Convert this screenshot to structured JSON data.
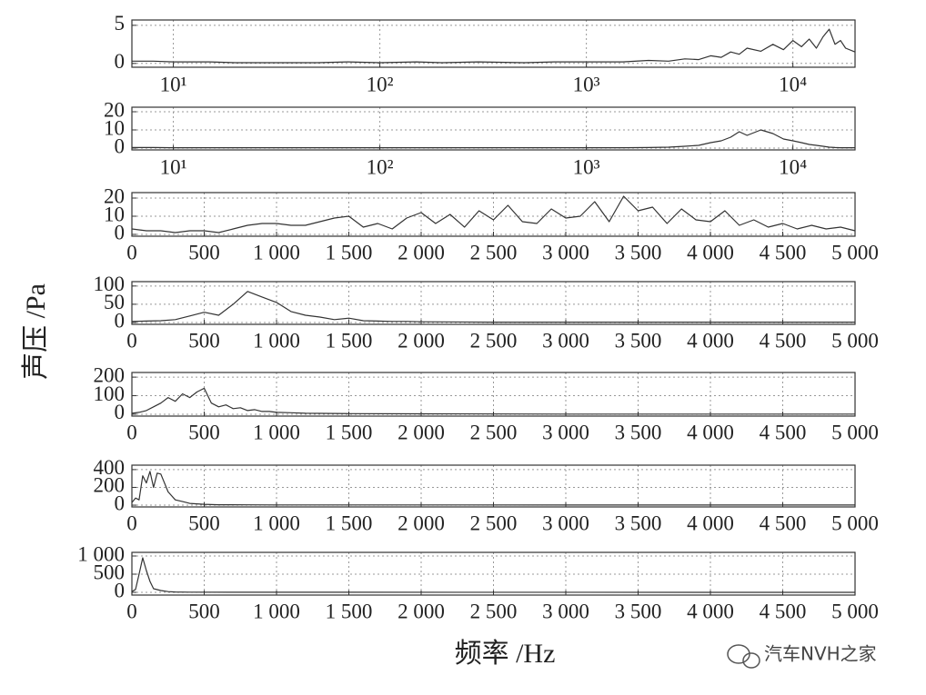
{
  "figure": {
    "ylabel": "声压 /Pa",
    "xlabel": "频率 /Hz",
    "watermark": "汽车NVH之家"
  },
  "chart_data": [
    {
      "type": "line",
      "xscale": "log",
      "grid": true,
      "color": "#333333",
      "x": [
        6.3,
        8,
        10,
        15,
        20,
        30,
        50,
        70,
        100,
        150,
        200,
        300,
        500,
        700,
        1000,
        1500,
        2000,
        2500,
        3000,
        3500,
        4000,
        4500,
        5000,
        5500,
        6000,
        7000,
        8000,
        9000,
        10000,
        11000,
        12000,
        13000,
        14000,
        15000,
        16000,
        17000,
        18000,
        20000
      ],
      "values": [
        0.3,
        0.3,
        0.2,
        0.2,
        0.1,
        0.1,
        0.1,
        0.2,
        0.1,
        0.2,
        0.1,
        0.2,
        0.1,
        0.2,
        0.2,
        0.2,
        0.4,
        0.3,
        0.6,
        0.5,
        1.0,
        0.8,
        1.5,
        1.2,
        2.0,
        1.6,
        2.5,
        1.8,
        3.0,
        2.2,
        3.2,
        2.0,
        3.5,
        4.5,
        2.5,
        3.0,
        2.0,
        1.5
      ],
      "xlim": [
        6.3,
        20000
      ],
      "xticks": [
        {
          "value": 10,
          "label": "10¹"
        },
        {
          "value": 100,
          "label": "10²"
        },
        {
          "value": 1000,
          "label": "10³"
        },
        {
          "value": 10000,
          "label": "10⁴"
        }
      ],
      "ylim": [
        -0.5,
        5.7
      ],
      "yticks": [
        0,
        5
      ]
    },
    {
      "type": "line",
      "xscale": "log",
      "grid": true,
      "color": "#333333",
      "x": [
        6.3,
        8,
        10,
        15,
        20,
        30,
        50,
        70,
        100,
        150,
        200,
        300,
        500,
        700,
        1000,
        1500,
        2000,
        2500,
        3000,
        3500,
        4000,
        4500,
        5000,
        5500,
        6000,
        7000,
        8000,
        9000,
        10000,
        11000,
        12000,
        13000,
        14000,
        15000,
        16000,
        17000,
        18000,
        20000
      ],
      "values": [
        0.3,
        0.3,
        0.2,
        0.2,
        0.2,
        0.2,
        0.2,
        0.2,
        0.2,
        0.2,
        0.2,
        0.2,
        0.2,
        0.2,
        0.2,
        0.2,
        0.3,
        0.5,
        1,
        1.5,
        3,
        4,
        6,
        9,
        7,
        10,
        8,
        5,
        4,
        3,
        2,
        1.5,
        1,
        0.5,
        0.3,
        0.2,
        0.2,
        0.2
      ],
      "xlim": [
        6.3,
        20000
      ],
      "xticks": [
        {
          "value": 10,
          "label": "10¹"
        },
        {
          "value": 100,
          "label": "10²"
        },
        {
          "value": 1000,
          "label": "10³"
        },
        {
          "value": 10000,
          "label": "10⁴"
        }
      ],
      "ylim": [
        -1,
        22.5
      ],
      "yticks": [
        0,
        10,
        20
      ]
    },
    {
      "type": "line",
      "grid": true,
      "color": "#333333",
      "x": [
        0,
        100,
        200,
        300,
        400,
        500,
        600,
        700,
        800,
        900,
        1000,
        1100,
        1200,
        1300,
        1400,
        1500,
        1600,
        1700,
        1800,
        1900,
        2000,
        2100,
        2200,
        2300,
        2400,
        2500,
        2600,
        2700,
        2800,
        2900,
        3000,
        3100,
        3200,
        3300,
        3400,
        3500,
        3600,
        3700,
        3800,
        3900,
        4000,
        4100,
        4200,
        4300,
        4400,
        4500,
        4600,
        4700,
        4800,
        4900,
        5000
      ],
      "values": [
        3,
        2,
        2,
        1,
        2,
        2,
        1,
        3,
        5,
        6,
        6,
        5,
        5,
        7,
        9,
        10,
        4,
        6,
        3,
        9,
        12,
        6,
        11,
        4,
        13,
        8,
        16,
        7,
        6,
        14,
        9,
        10,
        18,
        7,
        21,
        13,
        15,
        6,
        14,
        8,
        7,
        13,
        5,
        8,
        4,
        6,
        3,
        5,
        3,
        4,
        2
      ],
      "xlim": [
        0,
        5000
      ],
      "xticks": [
        0,
        500,
        {
          "value": 1000,
          "label": "1 000"
        },
        {
          "value": 1500,
          "label": "1 500"
        },
        {
          "value": 2000,
          "label": "2 000"
        },
        {
          "value": 2500,
          "label": "2 500"
        },
        {
          "value": 3000,
          "label": "3 000"
        },
        {
          "value": 3500,
          "label": "3 500"
        },
        {
          "value": 4000,
          "label": "4 000"
        },
        {
          "value": 4500,
          "label": "4 500"
        },
        {
          "value": 5000,
          "label": "5 000"
        }
      ],
      "ylim": [
        -1,
        23
      ],
      "yticks": [
        0,
        10,
        20
      ]
    },
    {
      "type": "line",
      "grid": true,
      "color": "#333333",
      "x": [
        0,
        100,
        200,
        300,
        400,
        500,
        600,
        700,
        800,
        900,
        1000,
        1100,
        1200,
        1300,
        1400,
        1500,
        1600,
        1700,
        1800,
        1900,
        2000,
        2500,
        3000,
        3500,
        4000,
        4500,
        5000
      ],
      "values": [
        3,
        4,
        5,
        8,
        18,
        28,
        20,
        50,
        85,
        70,
        55,
        30,
        20,
        15,
        8,
        12,
        5,
        4,
        3,
        3,
        2,
        1,
        1,
        1,
        1,
        1,
        1
      ],
      "xlim": [
        0,
        5000
      ],
      "xticks": [
        0,
        500,
        {
          "value": 1000,
          "label": "1 000"
        },
        {
          "value": 1500,
          "label": "1 500"
        },
        {
          "value": 2000,
          "label": "2 000"
        },
        {
          "value": 2500,
          "label": "2 500"
        },
        {
          "value": 3000,
          "label": "3 000"
        },
        {
          "value": 3500,
          "label": "3 500"
        },
        {
          "value": 4000,
          "label": "4 000"
        },
        {
          "value": 4500,
          "label": "4 500"
        },
        {
          "value": 5000,
          "label": "5 000"
        }
      ],
      "ylim": [
        -5,
        112
      ],
      "yticks": [
        0,
        50,
        100
      ]
    },
    {
      "type": "line",
      "grid": true,
      "color": "#333333",
      "x": [
        0,
        50,
        100,
        150,
        200,
        250,
        300,
        350,
        400,
        450,
        500,
        550,
        600,
        650,
        700,
        750,
        800,
        850,
        900,
        950,
        1000,
        1100,
        1200,
        1500,
        2000,
        3000,
        5000
      ],
      "values": [
        5,
        10,
        20,
        40,
        60,
        90,
        70,
        110,
        90,
        120,
        140,
        60,
        40,
        50,
        30,
        35,
        20,
        25,
        15,
        15,
        10,
        8,
        5,
        3,
        2,
        1,
        1
      ],
      "xlim": [
        0,
        5000
      ],
      "xticks": [
        0,
        500,
        {
          "value": 1000,
          "label": "1 000"
        },
        {
          "value": 1500,
          "label": "1 500"
        },
        {
          "value": 2000,
          "label": "2 000"
        },
        {
          "value": 2500,
          "label": "2 500"
        },
        {
          "value": 3000,
          "label": "3 000"
        },
        {
          "value": 3500,
          "label": "3 500"
        },
        {
          "value": 4000,
          "label": "4 000"
        },
        {
          "value": 4500,
          "label": "4 500"
        },
        {
          "value": 5000,
          "label": "5 000"
        }
      ],
      "ylim": [
        -10,
        225
      ],
      "yticks": [
        0,
        100,
        200
      ]
    },
    {
      "type": "line",
      "grid": true,
      "color": "#333333",
      "x": [
        0,
        25,
        50,
        75,
        100,
        125,
        150,
        175,
        200,
        250,
        300,
        350,
        400,
        450,
        500,
        600,
        800,
        1000,
        5000
      ],
      "values": [
        30,
        80,
        60,
        330,
        250,
        380,
        200,
        360,
        350,
        150,
        60,
        40,
        20,
        15,
        10,
        5,
        3,
        2,
        1
      ],
      "xlim": [
        0,
        5000
      ],
      "xticks": [
        0,
        500,
        {
          "value": 1000,
          "label": "1 000"
        },
        {
          "value": 1500,
          "label": "1 500"
        },
        {
          "value": 2000,
          "label": "2 000"
        },
        {
          "value": 2500,
          "label": "2 500"
        },
        {
          "value": 3000,
          "label": "3 000"
        },
        {
          "value": 3500,
          "label": "3 500"
        },
        {
          "value": 4000,
          "label": "4 000"
        },
        {
          "value": 4500,
          "label": "4 500"
        },
        {
          "value": 5000,
          "label": "5 000"
        }
      ],
      "ylim": [
        -20,
        450
      ],
      "yticks": [
        0,
        200,
        400
      ]
    },
    {
      "type": "line",
      "grid": true,
      "color": "#333333",
      "x": [
        0,
        25,
        50,
        75,
        100,
        125,
        150,
        200,
        250,
        300,
        400,
        1000,
        5000
      ],
      "values": [
        20,
        80,
        500,
        950,
        600,
        300,
        100,
        50,
        20,
        10,
        5,
        2,
        1
      ],
      "xlim": [
        0,
        5000
      ],
      "xticks": [
        0,
        500,
        {
          "value": 1000,
          "label": "1 000"
        },
        {
          "value": 1500,
          "label": "1 500"
        },
        {
          "value": 2000,
          "label": "2 000"
        },
        {
          "value": 2500,
          "label": "2 500"
        },
        {
          "value": 3000,
          "label": "3 000"
        },
        {
          "value": 3500,
          "label": "3 500"
        },
        {
          "value": 4000,
          "label": "4 000"
        },
        {
          "value": 4500,
          "label": "4 500"
        },
        {
          "value": 5000,
          "label": "5 000"
        }
      ],
      "ylim": [
        -75,
        1100
      ],
      "yticks": [
        0,
        500,
        {
          "value": 1000,
          "label": "1 000"
        }
      ]
    }
  ]
}
